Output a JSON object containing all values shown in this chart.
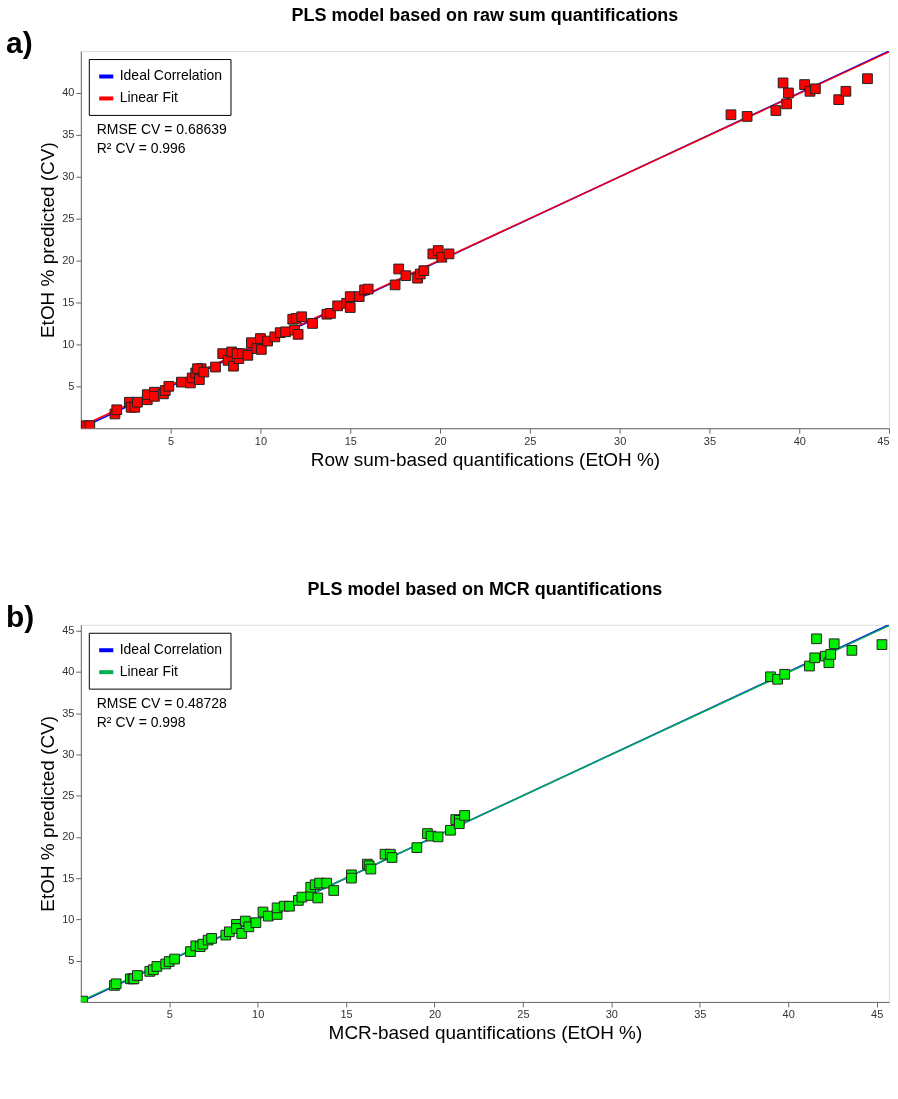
{
  "chart_data": [
    {
      "type": "scatter",
      "title": "PLS model based on raw sum quantifications",
      "xlabel": "Row sum-based quantifications (EtOH %)",
      "ylabel": "EtOH % predicted (CV)",
      "xlim": [
        0,
        45
      ],
      "ylim": [
        0,
        45
      ],
      "xticks": [
        5,
        10,
        15,
        20,
        25,
        30,
        35,
        40,
        45
      ],
      "yticks": [
        5,
        10,
        15,
        20,
        25,
        30,
        35,
        40
      ],
      "grid": false,
      "legend": "top left",
      "annotations": [
        "a)",
        "RMSE CV = 0.68639",
        "R² CV = 0.996"
      ],
      "series": [
        {
          "type": "line",
          "name": "Ideal Correlation",
          "color": "#0000ff",
          "x": [
            0,
            45
          ],
          "values": [
            0,
            45
          ]
        },
        {
          "type": "line",
          "name": "Linear Fit",
          "color": "#ff0000",
          "x": [
            0,
            45
          ],
          "values": [
            0.2,
            44.9
          ]
        },
        {
          "marker": "square",
          "color": "#ff0000",
          "x": [
            0.3,
            0.5,
            1.9,
            2.0,
            2.7,
            2.8,
            3.0,
            3.15,
            3.7,
            3.7,
            4.1,
            4.1,
            4.6,
            4.7,
            4.9,
            5.6,
            6.1,
            6.2,
            6.4,
            6.6,
            6.7,
            6.5,
            6.85,
            7.5,
            7.9,
            8.2,
            8.4,
            8.5,
            8.8,
            8.7,
            9.0,
            9.3,
            9.5,
            9.8,
            10.05,
            10.0,
            10.4,
            10.8,
            11.1,
            11.4,
            11.8,
            12.0,
            12.3,
            11.9,
            12.1,
            12.9,
            13.7,
            13.9,
            14.3,
            14.8,
            15.0,
            15.0,
            15.5,
            15.8,
            16.0,
            17.5,
            17.7,
            18.1,
            18.75,
            18.9,
            19.1,
            19.6,
            19.9,
            20.1,
            20.5,
            36.2,
            37.1,
            38.7,
            39.3,
            39.1,
            39.4,
            40.3,
            40.6,
            40.9,
            42.2,
            42.6,
            43.8
          ],
          "values": [
            0.3,
            0.3,
            1.7,
            2.2,
            3.1,
            2.5,
            2.5,
            3.1,
            3.4,
            4.0,
            4.3,
            3.8,
            4.1,
            4.5,
            5.0,
            5.5,
            5.4,
            6.0,
            6.6,
            5.8,
            7.1,
            7.1,
            6.7,
            7.3,
            8.9,
            8.1,
            9.1,
            7.4,
            8.3,
            8.9,
            8.9,
            8.7,
            10.2,
            9.5,
            9.4,
            10.7,
            10.4,
            10.9,
            11.4,
            11.5,
            13.0,
            13.1,
            13.3,
            11.7,
            11.2,
            12.5,
            13.6,
            13.7,
            14.6,
            14.9,
            14.4,
            15.7,
            15.7,
            16.5,
            16.6,
            17.1,
            19.0,
            18.2,
            17.9,
            18.4,
            18.8,
            20.8,
            21.2,
            20.4,
            20.8,
            37.4,
            37.2,
            37.9,
            38.7,
            41.2,
            40.0,
            41.0,
            40.2,
            40.5,
            39.2,
            40.2,
            41.7
          ]
        }
      ]
    },
    {
      "type": "scatter",
      "title": "PLS model based on MCR quantifications",
      "xlabel": "MCR-based quantifications (EtOH %)",
      "ylabel": "EtOH % predicted (CV)",
      "xlim": [
        0,
        45.7
      ],
      "ylim": [
        0,
        45.7
      ],
      "xticks": [
        5,
        10,
        15,
        20,
        25,
        30,
        35,
        40,
        45
      ],
      "yticks": [
        5,
        10,
        15,
        20,
        25,
        30,
        35,
        40,
        45
      ],
      "grid": false,
      "legend": "top left",
      "annotations": [
        "b)",
        "RMSE CV = 0.48728",
        "R² CV = 0.998"
      ],
      "series": [
        {
          "type": "line",
          "name": "Ideal Correlation",
          "color": "#0000ff",
          "x": [
            0,
            45.7
          ],
          "values": [
            0,
            45.7
          ]
        },
        {
          "type": "line",
          "name": "Linear Fit",
          "color": "#00b050",
          "x": [
            0,
            45.7
          ],
          "values": [
            0.1,
            45.6
          ]
        },
        {
          "marker": "square",
          "color": "#00ee00",
          "x": [
            0.1,
            1.9,
            2.0,
            2.8,
            2.95,
            3.0,
            3.2,
            3.9,
            4.1,
            4.3,
            4.8,
            5.0,
            5.3,
            6.2,
            6.5,
            6.75,
            6.9,
            7.2,
            7.4,
            8.2,
            8.4,
            8.8,
            8.8,
            9.1,
            9.3,
            9.5,
            9.9,
            10.3,
            10.6,
            11.1,
            11.1,
            11.5,
            11.8,
            12.3,
            12.5,
            13.0,
            13.0,
            13.25,
            13.5,
            13.4,
            13.9,
            14.3,
            15.3,
            15.3,
            16.2,
            16.3,
            16.4,
            17.2,
            17.5,
            17.6,
            19.0,
            19.6,
            19.8,
            20.2,
            20.9,
            21.2,
            21.4,
            21.4,
            21.7,
            39.0,
            39.4,
            39.8,
            41.2,
            41.5,
            41.6,
            42.1,
            42.3,
            42.4,
            42.6,
            43.6,
            45.3
          ],
          "values": [
            0.1,
            2.0,
            2.2,
            2.8,
            2.8,
            2.8,
            3.2,
            3.7,
            3.9,
            4.3,
            4.6,
            4.9,
            5.2,
            6.1,
            6.8,
            6.7,
            7.0,
            7.5,
            7.7,
            8.1,
            8.5,
            9.4,
            8.9,
            8.3,
            9.8,
            9.1,
            9.6,
            10.9,
            10.4,
            10.6,
            11.4,
            11.6,
            11.6,
            12.3,
            12.7,
            12.9,
            13.9,
            14.2,
            14.4,
            12.6,
            14.4,
            13.5,
            15.4,
            15.0,
            16.7,
            16.5,
            16.1,
            17.9,
            17.9,
            17.5,
            18.7,
            20.4,
            20.1,
            20.0,
            20.8,
            22.1,
            22.0,
            21.6,
            22.6,
            39.4,
            39.1,
            39.7,
            40.7,
            41.7,
            44.0,
            41.9,
            41.1,
            42.1,
            43.4,
            42.6,
            43.3
          ]
        }
      ]
    }
  ]
}
